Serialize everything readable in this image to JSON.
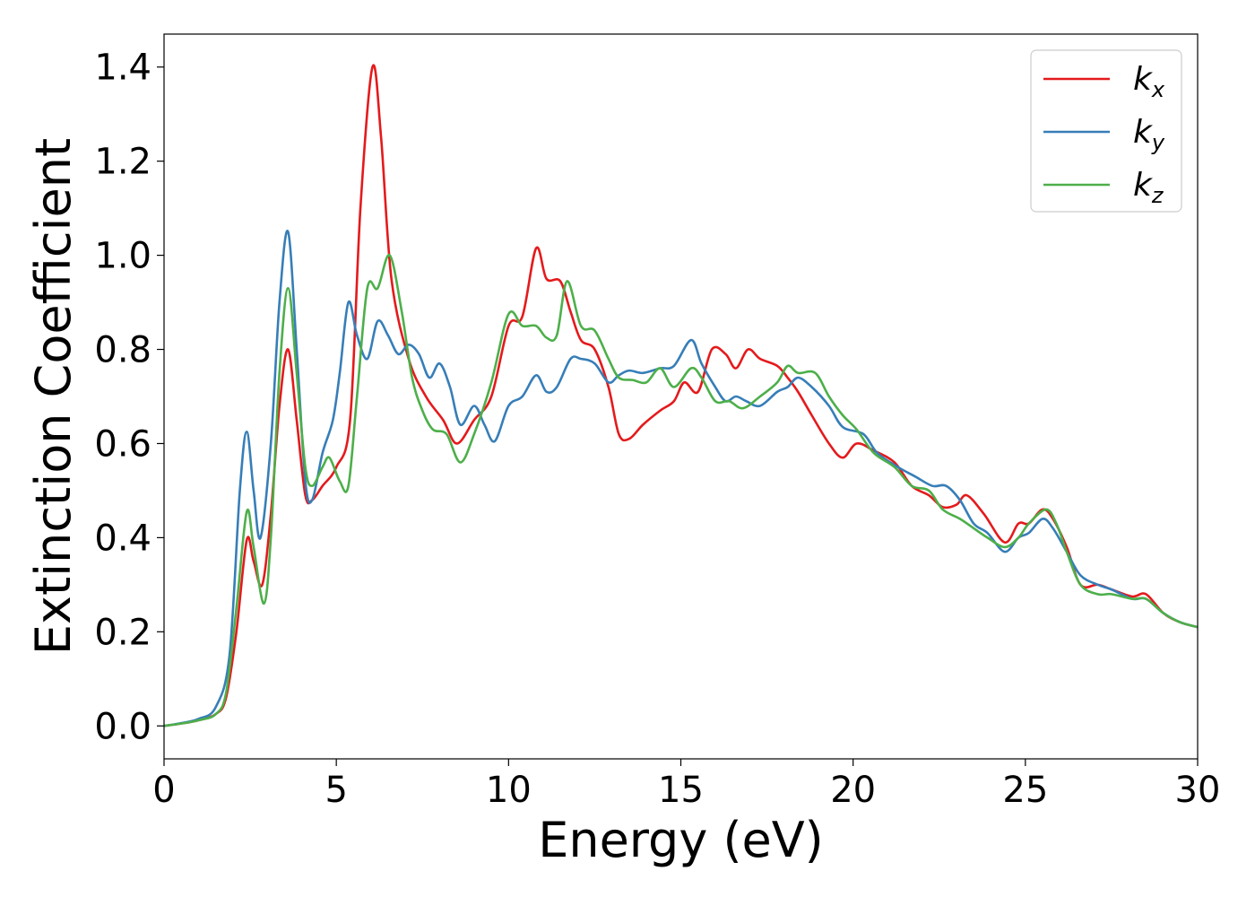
{
  "chart_data": {
    "type": "line",
    "title": "",
    "xlabel": "Energy (eV)",
    "ylabel": "Extinction Coefficient",
    "xlim": [
      0,
      30
    ],
    "ylim": [
      -0.07,
      1.47
    ],
    "xticks": [
      0,
      5,
      10,
      15,
      20,
      25,
      30
    ],
    "xtick_labels": [
      "0",
      "5",
      "10",
      "15",
      "20",
      "25",
      "30"
    ],
    "yticks": [
      0.0,
      0.2,
      0.4,
      0.6,
      0.8,
      1.0,
      1.2,
      1.4
    ],
    "ytick_labels": [
      "0.0",
      "0.2",
      "0.4",
      "0.6",
      "0.8",
      "1.0",
      "1.2",
      "1.4"
    ],
    "grid": false,
    "legend_position": "top-right",
    "series": [
      {
        "name": "k",
        "subscript": "x",
        "color": "#e41a1c",
        "points": [
          [
            0,
            0
          ],
          [
            0.5,
            0.005
          ],
          [
            1,
            0.012
          ],
          [
            1.5,
            0.025
          ],
          [
            1.8,
            0.06
          ],
          [
            2.1,
            0.2
          ],
          [
            2.4,
            0.395
          ],
          [
            2.6,
            0.35
          ],
          [
            2.85,
            0.3
          ],
          [
            3.1,
            0.45
          ],
          [
            3.35,
            0.68
          ],
          [
            3.6,
            0.8
          ],
          [
            3.85,
            0.65
          ],
          [
            4.1,
            0.49
          ],
          [
            4.3,
            0.48
          ],
          [
            4.6,
            0.51
          ],
          [
            5,
            0.55
          ],
          [
            5.4,
            0.65
          ],
          [
            5.7,
            1.1
          ],
          [
            6.05,
            1.4
          ],
          [
            6.3,
            1.25
          ],
          [
            6.6,
            0.95
          ],
          [
            7.1,
            0.78
          ],
          [
            7.6,
            0.7
          ],
          [
            8.1,
            0.65
          ],
          [
            8.5,
            0.6
          ],
          [
            9,
            0.65
          ],
          [
            9.5,
            0.7
          ],
          [
            10,
            0.85
          ],
          [
            10.4,
            0.87
          ],
          [
            10.8,
            1.015
          ],
          [
            11.1,
            0.95
          ],
          [
            11.5,
            0.945
          ],
          [
            11.8,
            0.88
          ],
          [
            12.1,
            0.82
          ],
          [
            12.5,
            0.8
          ],
          [
            12.9,
            0.72
          ],
          [
            13.2,
            0.62
          ],
          [
            13.5,
            0.61
          ],
          [
            13.9,
            0.64
          ],
          [
            14.4,
            0.67
          ],
          [
            14.8,
            0.69
          ],
          [
            15.1,
            0.73
          ],
          [
            15.5,
            0.71
          ],
          [
            15.9,
            0.8
          ],
          [
            16.3,
            0.79
          ],
          [
            16.6,
            0.76
          ],
          [
            16.95,
            0.8
          ],
          [
            17.3,
            0.78
          ],
          [
            17.8,
            0.765
          ],
          [
            18.1,
            0.74
          ],
          [
            18.4,
            0.71
          ],
          [
            18.8,
            0.66
          ],
          [
            19.3,
            0.6
          ],
          [
            19.7,
            0.57
          ],
          [
            20.1,
            0.6
          ],
          [
            20.6,
            0.585
          ],
          [
            21.2,
            0.56
          ],
          [
            21.7,
            0.51
          ],
          [
            22.2,
            0.49
          ],
          [
            22.6,
            0.465
          ],
          [
            23,
            0.47
          ],
          [
            23.3,
            0.49
          ],
          [
            23.8,
            0.45
          ],
          [
            24.4,
            0.39
          ],
          [
            24.8,
            0.43
          ],
          [
            25.1,
            0.43
          ],
          [
            25.5,
            0.46
          ],
          [
            25.8,
            0.44
          ],
          [
            26.2,
            0.38
          ],
          [
            26.6,
            0.3
          ],
          [
            27.1,
            0.3
          ],
          [
            27.5,
            0.29
          ],
          [
            28.1,
            0.275
          ],
          [
            28.5,
            0.28
          ],
          [
            29,
            0.24
          ],
          [
            29.5,
            0.22
          ],
          [
            30,
            0.21
          ]
        ]
      },
      {
        "name": "k",
        "subscript": "y",
        "color": "#377eb8",
        "points": [
          [
            0,
            0
          ],
          [
            0.5,
            0.006
          ],
          [
            1,
            0.015
          ],
          [
            1.5,
            0.04
          ],
          [
            1.9,
            0.15
          ],
          [
            2.2,
            0.5
          ],
          [
            2.4,
            0.625
          ],
          [
            2.6,
            0.5
          ],
          [
            2.8,
            0.4
          ],
          [
            3.1,
            0.6
          ],
          [
            3.35,
            0.9
          ],
          [
            3.6,
            1.05
          ],
          [
            3.85,
            0.8
          ],
          [
            4.1,
            0.52
          ],
          [
            4.3,
            0.48
          ],
          [
            4.6,
            0.58
          ],
          [
            4.9,
            0.65
          ],
          [
            5.1,
            0.75
          ],
          [
            5.35,
            0.9
          ],
          [
            5.6,
            0.83
          ],
          [
            5.9,
            0.78
          ],
          [
            6.2,
            0.86
          ],
          [
            6.5,
            0.83
          ],
          [
            6.8,
            0.79
          ],
          [
            7.1,
            0.81
          ],
          [
            7.4,
            0.79
          ],
          [
            7.7,
            0.74
          ],
          [
            8,
            0.77
          ],
          [
            8.3,
            0.72
          ],
          [
            8.6,
            0.64
          ],
          [
            9,
            0.68
          ],
          [
            9.3,
            0.64
          ],
          [
            9.6,
            0.605
          ],
          [
            10,
            0.68
          ],
          [
            10.4,
            0.7
          ],
          [
            10.8,
            0.745
          ],
          [
            11.1,
            0.71
          ],
          [
            11.4,
            0.72
          ],
          [
            11.8,
            0.78
          ],
          [
            12.1,
            0.78
          ],
          [
            12.5,
            0.77
          ],
          [
            12.9,
            0.73
          ],
          [
            13.2,
            0.745
          ],
          [
            13.5,
            0.755
          ],
          [
            13.9,
            0.75
          ],
          [
            14.4,
            0.76
          ],
          [
            14.8,
            0.765
          ],
          [
            15.3,
            0.82
          ],
          [
            15.6,
            0.77
          ],
          [
            16,
            0.72
          ],
          [
            16.3,
            0.69
          ],
          [
            16.6,
            0.7
          ],
          [
            16.9,
            0.69
          ],
          [
            17.3,
            0.68
          ],
          [
            17.8,
            0.71
          ],
          [
            18.1,
            0.72
          ],
          [
            18.4,
            0.74
          ],
          [
            18.8,
            0.72
          ],
          [
            19.3,
            0.68
          ],
          [
            19.7,
            0.635
          ],
          [
            20.3,
            0.62
          ],
          [
            20.7,
            0.58
          ],
          [
            21.3,
            0.55
          ],
          [
            21.8,
            0.53
          ],
          [
            22.3,
            0.51
          ],
          [
            22.7,
            0.51
          ],
          [
            23.1,
            0.48
          ],
          [
            23.5,
            0.43
          ],
          [
            23.9,
            0.41
          ],
          [
            24.4,
            0.37
          ],
          [
            24.8,
            0.4
          ],
          [
            25.1,
            0.41
          ],
          [
            25.5,
            0.44
          ],
          [
            25.8,
            0.42
          ],
          [
            26.2,
            0.37
          ],
          [
            26.6,
            0.32
          ],
          [
            27.1,
            0.3
          ],
          [
            27.5,
            0.29
          ],
          [
            28.1,
            0.27
          ],
          [
            28.5,
            0.27
          ],
          [
            29,
            0.24
          ],
          [
            29.5,
            0.22
          ],
          [
            30,
            0.21
          ]
        ]
      },
      {
        "name": "k",
        "subscript": "z",
        "color": "#4daf4a",
        "points": [
          [
            0,
            0
          ],
          [
            0.5,
            0.005
          ],
          [
            1,
            0.012
          ],
          [
            1.5,
            0.025
          ],
          [
            1.8,
            0.07
          ],
          [
            2.1,
            0.25
          ],
          [
            2.4,
            0.455
          ],
          [
            2.6,
            0.38
          ],
          [
            2.9,
            0.26
          ],
          [
            3.1,
            0.4
          ],
          [
            3.35,
            0.75
          ],
          [
            3.6,
            0.93
          ],
          [
            3.85,
            0.75
          ],
          [
            4.1,
            0.55
          ],
          [
            4.3,
            0.51
          ],
          [
            4.6,
            0.55
          ],
          [
            4.8,
            0.57
          ],
          [
            5.1,
            0.52
          ],
          [
            5.35,
            0.51
          ],
          [
            5.6,
            0.7
          ],
          [
            5.9,
            0.93
          ],
          [
            6.2,
            0.93
          ],
          [
            6.55,
            1
          ],
          [
            6.9,
            0.88
          ],
          [
            7.2,
            0.74
          ],
          [
            7.5,
            0.67
          ],
          [
            7.8,
            0.63
          ],
          [
            8.2,
            0.62
          ],
          [
            8.6,
            0.56
          ],
          [
            9,
            0.62
          ],
          [
            9.5,
            0.73
          ],
          [
            10,
            0.875
          ],
          [
            10.4,
            0.85
          ],
          [
            10.8,
            0.85
          ],
          [
            11.1,
            0.825
          ],
          [
            11.4,
            0.83
          ],
          [
            11.7,
            0.945
          ],
          [
            12.1,
            0.85
          ],
          [
            12.5,
            0.84
          ],
          [
            12.9,
            0.78
          ],
          [
            13.2,
            0.74
          ],
          [
            13.6,
            0.735
          ],
          [
            14,
            0.73
          ],
          [
            14.4,
            0.76
          ],
          [
            14.8,
            0.72
          ],
          [
            15.3,
            0.76
          ],
          [
            15.6,
            0.74
          ],
          [
            16,
            0.69
          ],
          [
            16.4,
            0.69
          ],
          [
            16.8,
            0.675
          ],
          [
            17.3,
            0.7
          ],
          [
            17.8,
            0.73
          ],
          [
            18.1,
            0.765
          ],
          [
            18.4,
            0.75
          ],
          [
            18.9,
            0.75
          ],
          [
            19.3,
            0.7
          ],
          [
            19.7,
            0.66
          ],
          [
            20.1,
            0.63
          ],
          [
            20.6,
            0.58
          ],
          [
            21.2,
            0.55
          ],
          [
            21.7,
            0.51
          ],
          [
            22.2,
            0.5
          ],
          [
            22.6,
            0.46
          ],
          [
            23.1,
            0.44
          ],
          [
            23.5,
            0.42
          ],
          [
            23.9,
            0.4
          ],
          [
            24.4,
            0.38
          ],
          [
            24.8,
            0.4
          ],
          [
            25.1,
            0.43
          ],
          [
            25.6,
            0.46
          ],
          [
            25.9,
            0.43
          ],
          [
            26.2,
            0.37
          ],
          [
            26.6,
            0.3
          ],
          [
            27.1,
            0.28
          ],
          [
            27.5,
            0.28
          ],
          [
            28.1,
            0.27
          ],
          [
            28.5,
            0.27
          ],
          [
            29,
            0.24
          ],
          [
            29.5,
            0.22
          ],
          [
            30,
            0.21
          ]
        ]
      }
    ]
  }
}
